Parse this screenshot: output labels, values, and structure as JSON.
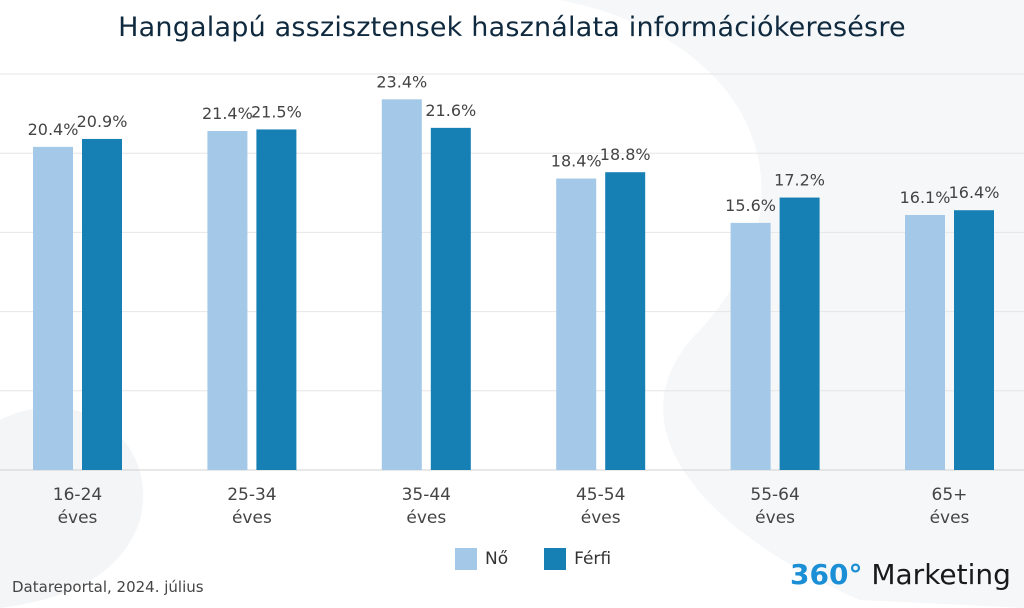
{
  "title": "Hangalapú asszisztensek használata információkeresésre",
  "source": "Datareportal, 2024. július",
  "brand": {
    "prefix": "360°",
    "name": "Marketing"
  },
  "colors": {
    "no": "#a3c8e8",
    "ferfi": "#1680b5",
    "brand_accent": "#1a8fd6",
    "grid": "#e6e6e6"
  },
  "legend": [
    {
      "label": "Nő",
      "color": "#a3c8e8"
    },
    {
      "label": "Férfi",
      "color": "#1680b5"
    }
  ],
  "chart_data": {
    "type": "bar",
    "title": "Hangalapú asszisztensek használata információkeresésre",
    "categories": [
      [
        "16-24",
        "éves"
      ],
      [
        "25-34",
        "éves"
      ],
      [
        "35-44",
        "éves"
      ],
      [
        "45-54",
        "éves"
      ],
      [
        "55-64",
        "éves"
      ],
      [
        "65+",
        "éves"
      ]
    ],
    "series": [
      {
        "name": "Nő",
        "values": [
          20.4,
          21.4,
          23.4,
          18.4,
          15.6,
          16.1
        ],
        "labels": [
          "20.4%",
          "21.4%",
          "23.4%",
          "18.4%",
          "15.6%",
          "16.1%"
        ]
      },
      {
        "name": "Férfi",
        "values": [
          20.9,
          21.5,
          21.6,
          18.8,
          17.2,
          16.4
        ],
        "labels": [
          "20.9%",
          "21.5%",
          "21.6%",
          "18.8%",
          "17.2%",
          "16.4%"
        ]
      }
    ],
    "ylim": [
      0,
      25
    ],
    "grid": true,
    "legend_position": "bottom-center"
  }
}
